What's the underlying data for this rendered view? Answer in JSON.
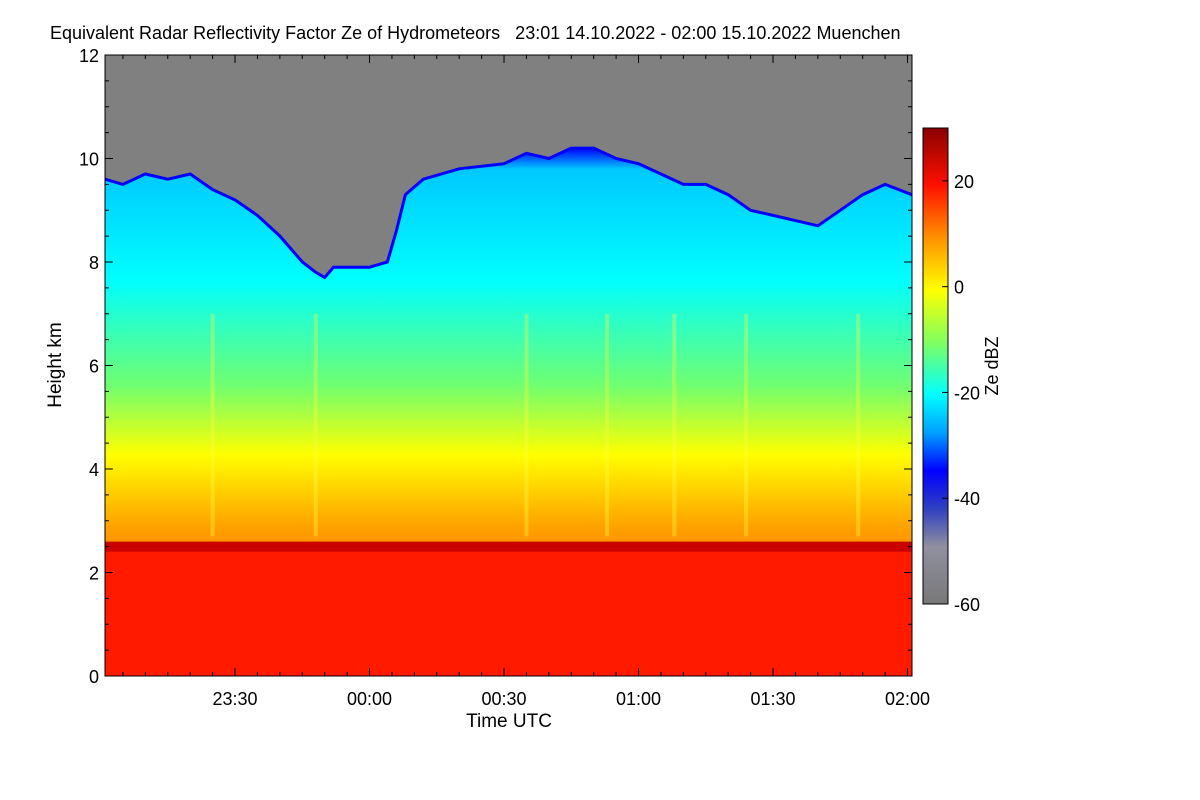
{
  "chart_data": {
    "type": "heatmap",
    "title": "Equivalent Radar Reflectivity Factor Ze of Hydrometeors   23:01 14.10.2022 - 02:00 15.10.2022 Muenchen",
    "xlabel": "Time UTC",
    "ylabel": "Height km",
    "xlim_minutes_from_midnight": [
      -59,
      121
    ],
    "x_ticks": [
      {
        "label": "23:30",
        "value": -30
      },
      {
        "label": "00:00",
        "value": 0
      },
      {
        "label": "00:30",
        "value": 30
      },
      {
        "label": "01:00",
        "value": 60
      },
      {
        "label": "01:30",
        "value": 90
      },
      {
        "label": "02:00",
        "value": 120
      }
    ],
    "ylim": [
      0,
      12
    ],
    "y_ticks": [
      0,
      2,
      4,
      6,
      8,
      10,
      12
    ],
    "colorbar": {
      "label": "Ze dBZ",
      "range": [
        -60,
        30
      ],
      "ticks": [
        20,
        0,
        -20,
        -40,
        -60
      ],
      "no_signal_color": "#808080"
    },
    "echo_top_km": [
      {
        "t": -59,
        "top": 9.6
      },
      {
        "t": -55,
        "top": 9.5
      },
      {
        "t": -50,
        "top": 9.7
      },
      {
        "t": -45,
        "top": 9.6
      },
      {
        "t": -40,
        "top": 9.7
      },
      {
        "t": -35,
        "top": 9.4
      },
      {
        "t": -30,
        "top": 9.2
      },
      {
        "t": -25,
        "top": 8.9
      },
      {
        "t": -20,
        "top": 8.5
      },
      {
        "t": -15,
        "top": 8.0
      },
      {
        "t": -12,
        "top": 7.8
      },
      {
        "t": -10,
        "top": 7.7
      },
      {
        "t": -8,
        "top": 7.9
      },
      {
        "t": -5,
        "top": 7.9
      },
      {
        "t": 0,
        "top": 7.9
      },
      {
        "t": 4,
        "top": 8.0
      },
      {
        "t": 6,
        "top": 8.6
      },
      {
        "t": 8,
        "top": 9.3
      },
      {
        "t": 12,
        "top": 9.6
      },
      {
        "t": 20,
        "top": 9.8
      },
      {
        "t": 30,
        "top": 9.9
      },
      {
        "t": 35,
        "top": 10.1
      },
      {
        "t": 40,
        "top": 10.0
      },
      {
        "t": 45,
        "top": 10.2
      },
      {
        "t": 50,
        "top": 10.2
      },
      {
        "t": 55,
        "top": 10.0
      },
      {
        "t": 60,
        "top": 9.9
      },
      {
        "t": 65,
        "top": 9.7
      },
      {
        "t": 70,
        "top": 9.5
      },
      {
        "t": 75,
        "top": 9.5
      },
      {
        "t": 80,
        "top": 9.3
      },
      {
        "t": 85,
        "top": 9.0
      },
      {
        "t": 90,
        "top": 8.9
      },
      {
        "t": 95,
        "top": 8.8
      },
      {
        "t": 100,
        "top": 8.7
      },
      {
        "t": 105,
        "top": 9.0
      },
      {
        "t": 110,
        "top": 9.3
      },
      {
        "t": 115,
        "top": 9.5
      },
      {
        "t": 121,
        "top": 9.3
      }
    ],
    "melting_layer_km": 2.5
  }
}
